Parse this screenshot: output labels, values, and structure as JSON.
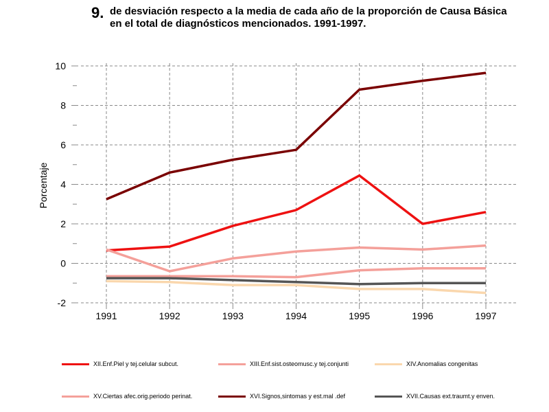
{
  "header": {
    "number": "9.",
    "title": "de desviación respecto a la media de cada año de la proporción de Causa Básica en el total de diagnósticos mencionados. 1991-1997."
  },
  "chart_data": {
    "type": "line",
    "title": "",
    "xlabel": "",
    "ylabel": "Porcentaje",
    "categories": [
      "1991",
      "1992",
      "1993",
      "1994",
      "1995",
      "1996",
      "1997"
    ],
    "yticks": [
      "10",
      "8",
      "6",
      "4",
      "2",
      "0",
      "-2"
    ],
    "ylim": [
      -2,
      10
    ],
    "grid": true,
    "legend_position": "bottom",
    "series": [
      {
        "name": "XII.Enf.Piel y tej.celular subcut.",
        "color": "#ee1111",
        "values": [
          0.65,
          0.85,
          1.9,
          2.7,
          4.45,
          2.0,
          2.6
        ]
      },
      {
        "name": "XIII.Enf.sist.osteomusc.y tej.conjunti",
        "color": "#f4a09a",
        "values": [
          -0.65,
          -0.65,
          -0.65,
          -0.7,
          -0.35,
          -0.25,
          -0.25
        ]
      },
      {
        "name": "XIV.Anomalias congenitas",
        "color": "#fad7ad",
        "values": [
          -0.9,
          -0.95,
          -1.1,
          -1.1,
          -1.3,
          -1.3,
          -1.5
        ]
      },
      {
        "name": "XV.Ciertas afec.orig.periodo perinat.",
        "color": "#f4a09a",
        "values": [
          0.7,
          -0.4,
          0.25,
          0.6,
          0.8,
          0.7,
          0.9
        ]
      },
      {
        "name": "XVI.Signos,sintomas y est.mal .def",
        "color": "#7a0000",
        "values": [
          3.25,
          4.6,
          5.25,
          5.75,
          8.8,
          9.25,
          9.65
        ]
      },
      {
        "name": "XVII.Causas ext.traumt.y enven.",
        "color": "#555555",
        "values": [
          -0.75,
          -0.75,
          -0.85,
          -0.95,
          -1.05,
          -1.0,
          -1.0
        ]
      }
    ]
  }
}
